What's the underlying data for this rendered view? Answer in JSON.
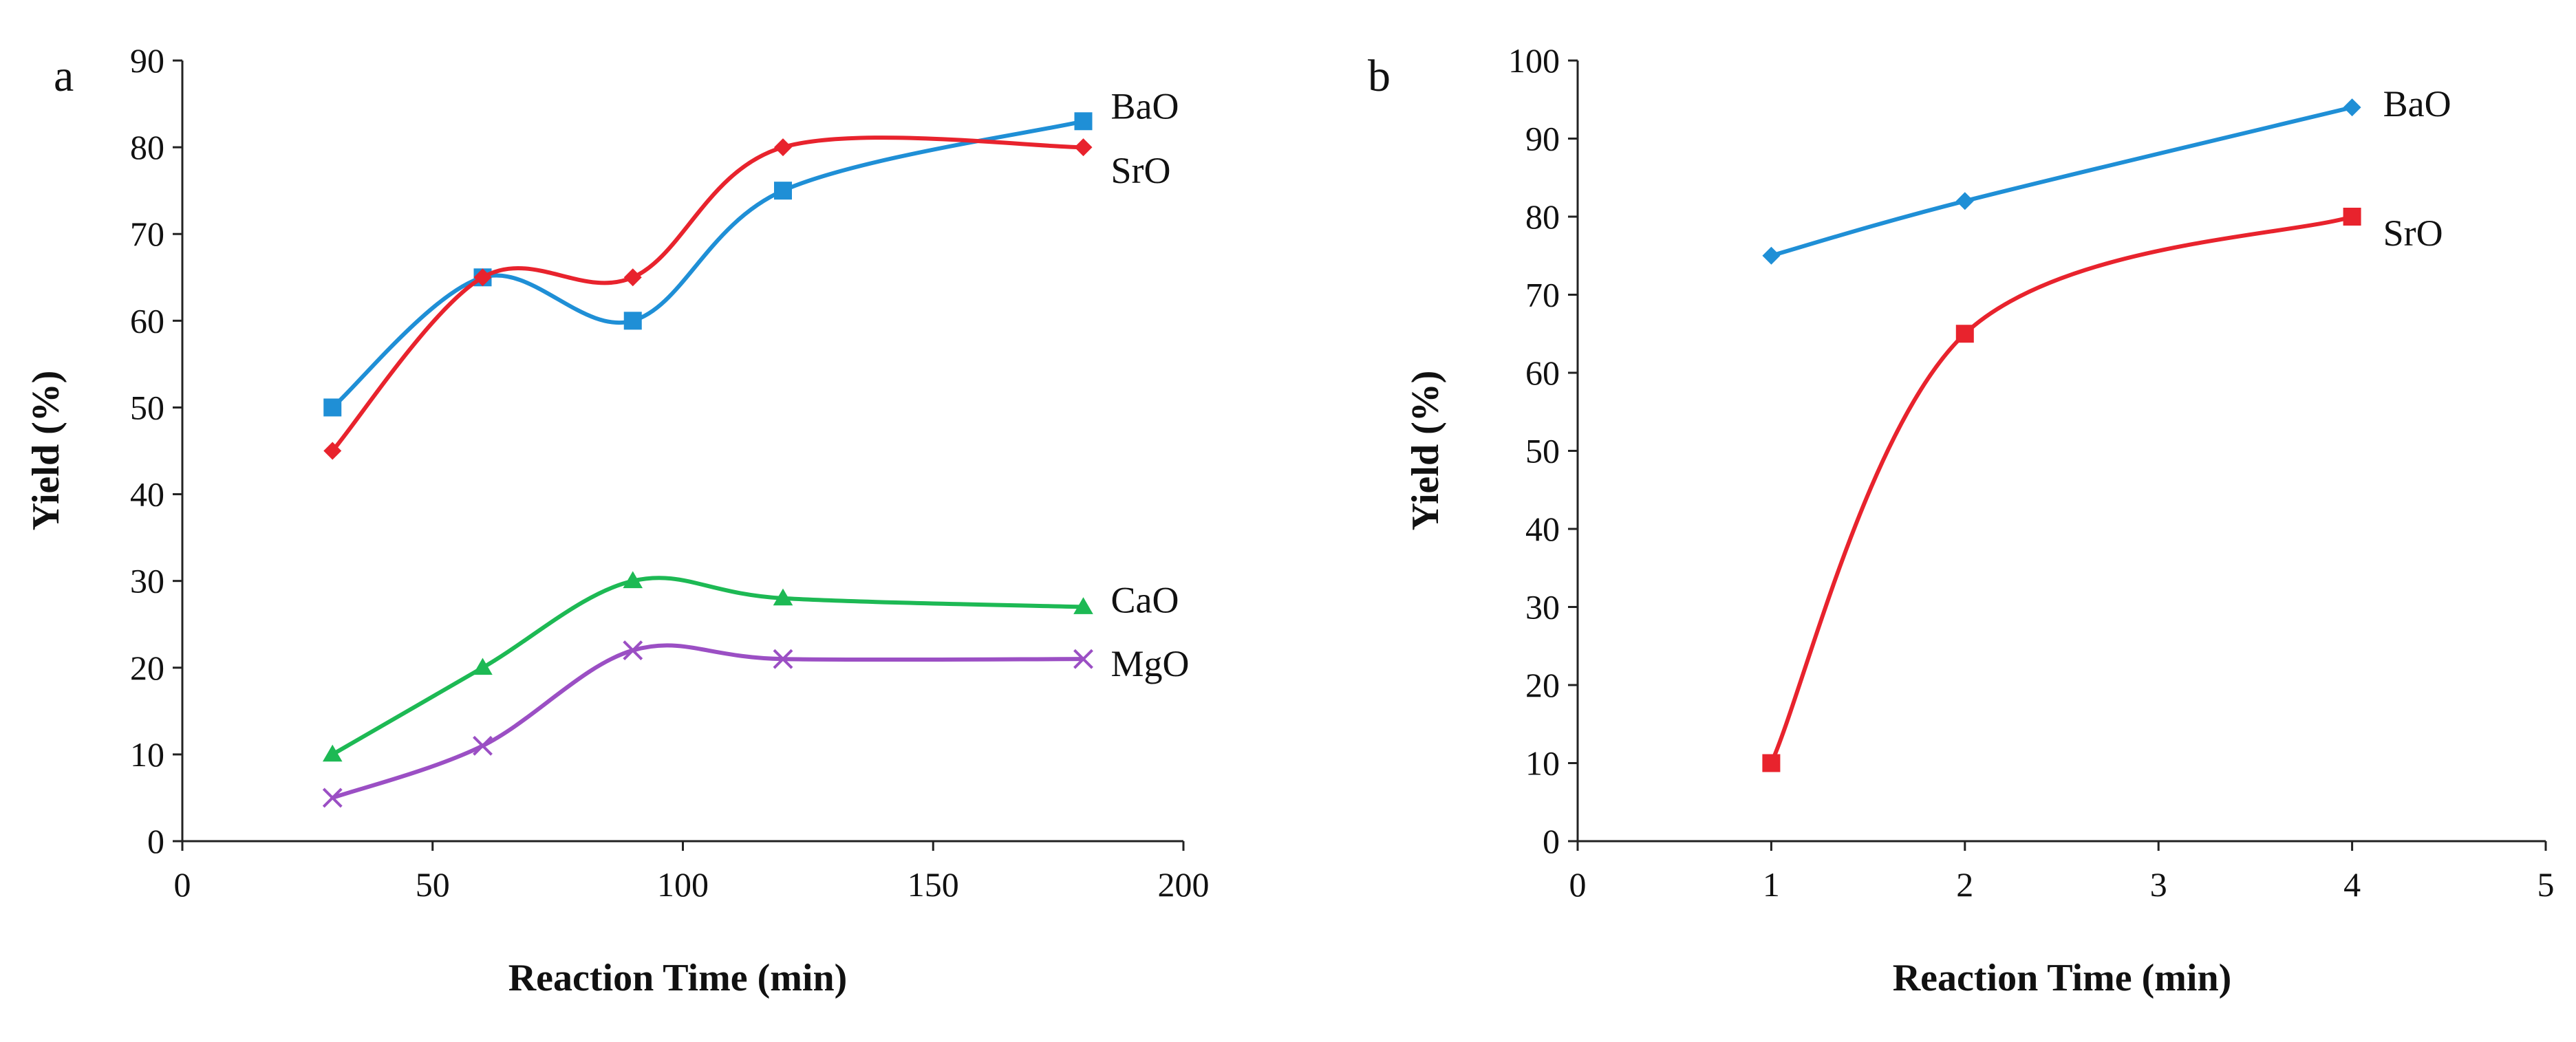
{
  "chart_data": [
    {
      "type": "line",
      "panel_label": "a",
      "title": "",
      "xlabel": "Reaction Time (min)",
      "ylabel": "Yield (%)",
      "xlim": [
        0,
        200
      ],
      "ylim": [
        0,
        90
      ],
      "x_ticks": [
        0,
        50,
        100,
        150,
        200
      ],
      "y_ticks": [
        0,
        10,
        20,
        30,
        40,
        50,
        60,
        70,
        80,
        90
      ],
      "grid": false,
      "legend": "inline labels at right end of each series",
      "series": [
        {
          "name": "BaO",
          "color": "#1f8fd6",
          "marker": "square",
          "x": [
            30,
            60,
            90,
            120,
            180
          ],
          "y": [
            50,
            65,
            60,
            75,
            83
          ]
        },
        {
          "name": "SrO",
          "color": "#e8232d",
          "marker": "diamond",
          "x": [
            30,
            60,
            90,
            120,
            180
          ],
          "y": [
            45,
            65,
            65,
            80,
            80
          ]
        },
        {
          "name": "CaO",
          "color": "#1db954",
          "marker": "triangle",
          "x": [
            30,
            60,
            90,
            120,
            180
          ],
          "y": [
            10,
            20,
            30,
            28,
            27
          ]
        },
        {
          "name": "MgO",
          "color": "#9b4fc4",
          "marker": "x",
          "x": [
            30,
            60,
            90,
            120,
            180
          ],
          "y": [
            5,
            11,
            22,
            21,
            21
          ]
        }
      ]
    },
    {
      "type": "line",
      "panel_label": "b",
      "title": "",
      "xlabel": "Reaction Time (min)",
      "ylabel": "Yield (%)",
      "xlim": [
        0,
        5
      ],
      "ylim": [
        0,
        100
      ],
      "x_ticks": [
        0,
        1,
        2,
        3,
        4,
        5
      ],
      "y_ticks": [
        0,
        10,
        20,
        30,
        40,
        50,
        60,
        70,
        80,
        90,
        100
      ],
      "grid": false,
      "legend": "inline labels at right end of each series",
      "series": [
        {
          "name": "BaO",
          "color": "#1f8fd6",
          "marker": "diamond",
          "x": [
            1,
            2,
            4
          ],
          "y": [
            75,
            82,
            94
          ]
        },
        {
          "name": "SrO",
          "color": "#e8232d",
          "marker": "square",
          "x": [
            1,
            2,
            4
          ],
          "y": [
            10,
            65,
            80
          ]
        }
      ]
    }
  ]
}
